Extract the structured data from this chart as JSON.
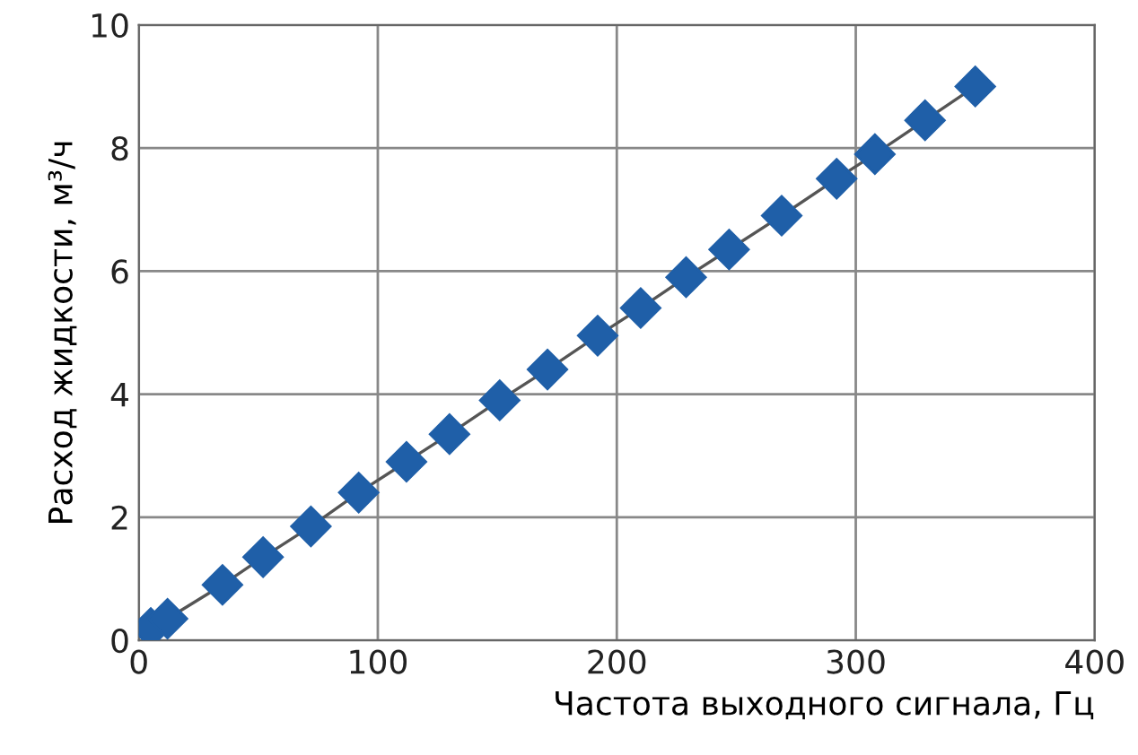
{
  "chart_data": {
    "type": "line",
    "xlabel": "Частота выходного сигнала, Гц",
    "ylabel": "Расход жидкости, м³/ч",
    "x": [
      5,
      12,
      35,
      52,
      72,
      92,
      112,
      130,
      151,
      171,
      192,
      210,
      229,
      247,
      269,
      292,
      308,
      329,
      350
    ],
    "series": [
      {
        "color": "#1f5fa8",
        "values": [
          0.2,
          0.35,
          0.9,
          1.35,
          1.85,
          2.4,
          2.9,
          3.35,
          3.9,
          4.4,
          4.95,
          5.4,
          5.9,
          6.35,
          6.9,
          7.5,
          7.9,
          8.45,
          9.0
        ]
      }
    ],
    "xlim": [
      0,
      400
    ],
    "xticks": [
      0,
      100,
      200,
      300,
      400
    ],
    "ylim": [
      0,
      10
    ],
    "yticks": [
      0,
      2,
      4,
      6,
      8,
      10
    ],
    "grid": true,
    "marker": "diamond",
    "line_style": "solid"
  }
}
